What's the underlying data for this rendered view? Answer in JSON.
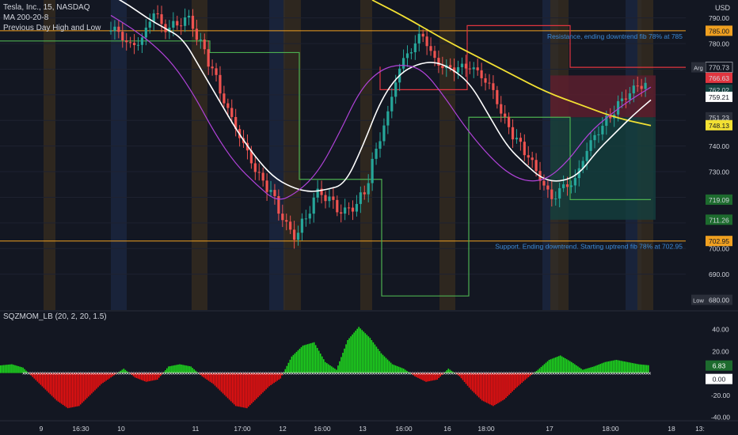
{
  "header": {
    "symbol_line": "Tesla, Inc., 15, NASDAQ",
    "indicators": [
      "MA 200-20-8",
      "Previous Day High and Low"
    ]
  },
  "currency": "USD",
  "colors": {
    "background": "#131722",
    "grid": "#1e2230",
    "up": "#26a69a",
    "down": "#ef5350",
    "ma_white": "#ffffff",
    "ma_purple": "#b042d8",
    "ma_yellow": "#f2e033",
    "pdh": "#e0353f",
    "pdl": "#4caf50",
    "fib": "#f0a020",
    "sqz_green": "#1ed81e",
    "sqz_red": "#f01010",
    "annotation": "#3b8ad8"
  },
  "chart_data": [
    {
      "type": "line",
      "title": "Tesla, Inc., 15, NASDAQ",
      "y_unit": "USD",
      "ylim": [
        676,
        797
      ],
      "y_ticks": [
        690,
        700,
        730,
        740,
        760,
        770,
        780,
        790
      ],
      "x_ticks": [
        "9",
        "16:30",
        "10",
        "11",
        "17:00",
        "12",
        "16:00",
        "13",
        "16:00",
        "16",
        "18:00",
        "17",
        "18:00",
        "18",
        "13:"
      ],
      "grid": true,
      "series": [
        {
          "name": "MA 200-20-8",
          "style": "candles",
          "approx_close": [
            785,
            779,
            781,
            792,
            786,
            788,
            790,
            780,
            770,
            758,
            748,
            738,
            728,
            722,
            712,
            705,
            712,
            722,
            719,
            714,
            716,
            722,
            738,
            752,
            770,
            778,
            784,
            774,
            770,
            770,
            771,
            768,
            762,
            750,
            742,
            736,
            728,
            720,
            724,
            726,
            738,
            746,
            752,
            758,
            762,
            764
          ]
        },
        {
          "style": "line",
          "color": "white",
          "approx_values": [
            799,
            795,
            790,
            786,
            782,
            770,
            758,
            746,
            736,
            728,
            724,
            722,
            723,
            725,
            740,
            758,
            768,
            772,
            773,
            770,
            764,
            752,
            740,
            733,
            727,
            726,
            729,
            738,
            745,
            752,
            758
          ]
        },
        {
          "style": "line",
          "color": "purple",
          "approx_values": [
            791,
            786,
            780,
            772,
            760,
            745,
            733,
            725,
            718,
            722,
            730,
            745,
            762,
            770,
            772,
            770,
            760,
            748,
            738,
            730,
            726,
            727,
            734,
            745,
            752,
            758,
            763
          ]
        },
        {
          "style": "line",
          "color": "yellow",
          "approx_values": [
            797,
            790,
            782,
            775,
            768,
            761,
            756,
            751,
            748
          ]
        }
      ],
      "price_labels": [
        {
          "value": "790.00"
        },
        {
          "value": "785.00",
          "note": "resistance"
        },
        {
          "value": "780.00"
        },
        {
          "value": "770.73",
          "tag": "Arg"
        },
        {
          "value": "766.63"
        },
        {
          "value": "762.02"
        },
        {
          "value": "759.21"
        },
        {
          "value": "751.23"
        },
        {
          "value": "748.13"
        },
        {
          "value": "740.00"
        },
        {
          "value": "730.00"
        },
        {
          "value": "719.09"
        },
        {
          "value": "711.26"
        },
        {
          "value": "702.95",
          "note": "support"
        },
        {
          "value": "700.00"
        },
        {
          "value": "690.00"
        },
        {
          "value": "680.00",
          "tag": "Low"
        }
      ],
      "annotations": [
        {
          "text": "Resistance, ending downtrend fib 78% at 785",
          "y": 785
        },
        {
          "text": "Support. Ending downtrend. Starting uptrend fib 78% at 702.95",
          "y": 702.95
        }
      ],
      "fib_levels": [
        785,
        702.95
      ],
      "position_box": {
        "entry": 751.23,
        "stop": 766.63,
        "target": 711.26
      }
    },
    {
      "type": "bar",
      "title": "SQZMOM_LB (20, 2, 20, 1.5)",
      "ylim": [
        -42,
        48
      ],
      "y_ticks": [
        40,
        20,
        -20,
        -40
      ],
      "value_labels": [
        "6.83",
        "0.00"
      ],
      "approx_values": [
        7,
        8,
        5,
        -5,
        -15,
        -25,
        -32,
        -30,
        -20,
        -10,
        -3,
        4,
        -4,
        -8,
        -6,
        6,
        8,
        6,
        -3,
        -10,
        -20,
        -30,
        -32,
        -22,
        -12,
        -5,
        15,
        25,
        28,
        10,
        3,
        30,
        42,
        32,
        18,
        8,
        4,
        -3,
        -8,
        -6,
        4,
        -3,
        -15,
        -25,
        -30,
        -24,
        -14,
        -5,
        3,
        12,
        16,
        10,
        3,
        6,
        10,
        12,
        10,
        8,
        7
      ]
    }
  ]
}
